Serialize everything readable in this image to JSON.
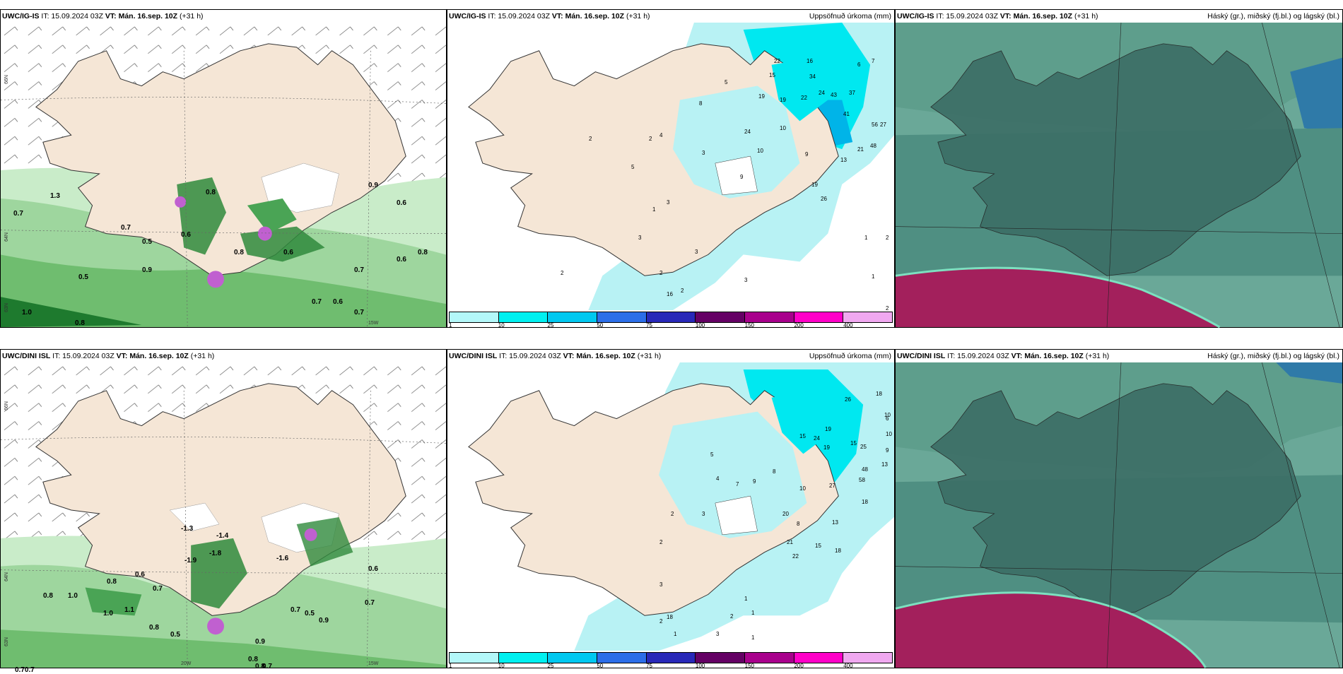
{
  "rows": [
    {
      "model": "UWC/IG-IS",
      "wind": {
        "it": "IT: 15.09.2024 03Z",
        "vt_label": "VT:",
        "vt_value": "Mán. 16.sep. 10Z",
        "lead": "(+31 h)",
        "axis": {
          "lat1": "66N",
          "lat2": "64N",
          "lat3": "63N",
          "lon": "15W"
        },
        "labels": [
          {
            "t": "1.3",
            "c": "#000"
          },
          {
            "t": "0.7",
            "c": "#000"
          },
          {
            "t": "0.7",
            "c": "#000"
          },
          {
            "t": "0.5",
            "c": "#000"
          },
          {
            "t": "0.8",
            "c": "#000"
          },
          {
            "t": "0.6",
            "c": "#000"
          },
          {
            "t": "0.9",
            "c": "#000"
          },
          {
            "t": "0.5",
            "c": "#000"
          },
          {
            "t": "1.0",
            "c": "#000"
          },
          {
            "t": "0.8",
            "c": "#000"
          },
          {
            "t": "0.6",
            "c": "#000"
          },
          {
            "t": "0.8",
            "c": "#000"
          },
          {
            "t": "0.7",
            "c": "#000"
          },
          {
            "t": "0.8",
            "c": "#000"
          },
          {
            "t": "0.9",
            "c": "#000"
          },
          {
            "t": "0.6",
            "c": "#000"
          },
          {
            "t": "0.6",
            "c": "#000"
          },
          {
            "t": "0.7",
            "c": "#000"
          },
          {
            "t": "0.7",
            "c": "#000"
          },
          {
            "t": "0.6",
            "c": "#000"
          }
        ]
      },
      "precip": {
        "it": "IT: 15.09.2024 03Z",
        "vt_label": "VT:",
        "vt_value": "Mán. 16.sep. 10Z",
        "lead": "(+31 h)",
        "title": "Uppsöfnuð úrkoma (mm)",
        "numbers": [
          "22",
          "16",
          "15",
          "34",
          "7",
          "6",
          "5",
          "19",
          "19",
          "22",
          "24",
          "43",
          "37",
          "8",
          "41",
          "56",
          "27",
          "48",
          "10",
          "24",
          "21",
          "10",
          "9",
          "13",
          "9",
          "19",
          "26",
          "4",
          "3",
          "2",
          "2",
          "5",
          "3",
          "16",
          "2",
          "3",
          "1",
          "2",
          "2",
          "1",
          "2",
          "3",
          "1",
          "3",
          "2"
        ]
      },
      "cloud": {
        "it": "IT: 15.09.2024 03Z",
        "vt_label": "VT:",
        "vt_value": "Mán. 16.sep. 10Z",
        "lead": "(+31 h)",
        "title": "Háský (gr.), miðský (fj.bl.) og lágský (bl.)"
      }
    },
    {
      "model": "UWC/DINI ISL",
      "wind": {
        "it": "IT: 15.09.2024 03Z",
        "vt_label": "VT:",
        "vt_value": "Mán. 16.sep. 10Z",
        "lead": "(+31 h)",
        "axis": {
          "lat1": "66N",
          "lat2": "64N",
          "lat3": "63N",
          "lon": "15W",
          "lon2": "20W"
        },
        "labels": [
          {
            "t": "-1.3",
            "c": "#000"
          },
          {
            "t": "-1.4",
            "c": "#000"
          },
          {
            "t": "-1.8",
            "c": "#000"
          },
          {
            "t": "-1.9",
            "c": "#000"
          },
          {
            "t": "-1.6",
            "c": "#000"
          },
          {
            "t": "0.8",
            "c": "#000"
          },
          {
            "t": "1.0",
            "c": "#000"
          },
          {
            "t": "0.8",
            "c": "#000"
          },
          {
            "t": "0.6",
            "c": "#000"
          },
          {
            "t": "0.7",
            "c": "#000"
          },
          {
            "t": "1.0",
            "c": "#000"
          },
          {
            "t": "1.1",
            "c": "#000"
          },
          {
            "t": "0.8",
            "c": "#000"
          },
          {
            "t": "0.5",
            "c": "#000"
          },
          {
            "t": "0.9",
            "c": "#000"
          },
          {
            "t": "0.7",
            "c": "#000"
          },
          {
            "t": "0.9",
            "c": "#000"
          },
          {
            "t": "0.5",
            "c": "#000"
          },
          {
            "t": "0.7",
            "c": "#000"
          },
          {
            "t": "0.8",
            "c": "#000"
          },
          {
            "t": "0.70.7",
            "c": "#000"
          },
          {
            "t": "0.8",
            "c": "#000"
          },
          {
            "t": "0.6",
            "c": "#000"
          },
          {
            "t": "0.7",
            "c": "#000"
          }
        ]
      },
      "precip": {
        "it": "IT: 15.09.2024 03Z",
        "vt_label": "VT:",
        "vt_value": "Mán. 16.sep. 10Z",
        "lead": "(+31 h)",
        "title": "Uppsöfnuð úrkoma (mm)",
        "numbers": [
          "18",
          "26",
          "10",
          "6",
          "19",
          "15",
          "24",
          "19",
          "25",
          "10",
          "9",
          "15",
          "48",
          "13",
          "58",
          "18",
          "27",
          "8",
          "9",
          "10",
          "20",
          "8",
          "13",
          "21",
          "22",
          "18",
          "15",
          "7",
          "5",
          "4",
          "3",
          "2",
          "2",
          "18",
          "1",
          "2",
          "3",
          "1",
          "1",
          "2",
          "1",
          "3"
        ]
      },
      "cloud": {
        "it": "IT: 15.09.2024 03Z",
        "vt_label": "VT:",
        "vt_value": "Mán. 16.sep. 10Z",
        "lead": "(+31 h)",
        "title": "Háský (gr.), miðský (fj.bl.) og lágský (bl.)"
      }
    }
  ],
  "colorbar": {
    "ticks": [
      "1",
      "10",
      "25",
      "50",
      "75",
      "100",
      "150",
      "200",
      "400"
    ],
    "colors": [
      "#b3f7f9",
      "#00f0f0",
      "#00c8f0",
      "#2c6ee8",
      "#2828b8",
      "#640064",
      "#a8008c",
      "#ff00c8",
      "#f0a8f0"
    ]
  },
  "palette": {
    "land": "#f5e6d6",
    "precip_light": "#b8f2f4",
    "precip_mid": "#00e8f0",
    "green_light": "#c9ecc9",
    "green_mid": "#74c274",
    "green_dark": "#1e7a2e",
    "purple": "#c060d0",
    "cloud_teal": "#4f8f82",
    "cloud_dark": "#3c6e66",
    "cloud_magenta": "#a3205c"
  }
}
